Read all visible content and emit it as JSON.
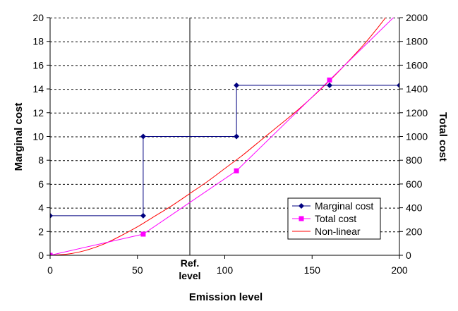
{
  "chart_data": {
    "type": "line",
    "title": "",
    "xlabel": "Emission level",
    "ylabel_left": "Marginal cost",
    "ylabel_right": "Total cost",
    "xlim": [
      0,
      200
    ],
    "ylim_left": [
      0,
      20
    ],
    "ylim_right": [
      0,
      2000
    ],
    "x_ticks": [
      0,
      50,
      100,
      150,
      200
    ],
    "y_left_ticks": [
      0,
      2,
      4,
      6,
      8,
      10,
      12,
      14,
      16,
      18,
      20
    ],
    "y_right_ticks": [
      0,
      200,
      400,
      600,
      800,
      1000,
      1200,
      1400,
      1600,
      1800,
      2000
    ],
    "grid": "horizontal dashed",
    "legend_position": "bottom-right",
    "annotation": {
      "label_lines": [
        "Ref.",
        "level"
      ],
      "x": 80
    },
    "colors": {
      "marginal": "#000080",
      "total": "#ff00ff",
      "nonlinear": "#ff0000",
      "grid": "#000000"
    },
    "series": [
      {
        "name": "Marginal cost",
        "axis": "left",
        "style": "step",
        "x": [
          0,
          53.3,
          53.3,
          106.7,
          106.7,
          160,
          200
        ],
        "y": [
          3.33,
          3.33,
          10,
          10,
          14.3,
          14.3,
          14.3
        ],
        "markers_x": [
          0,
          53.3,
          53.3,
          106.7,
          106.7,
          160,
          200
        ],
        "markers_y": [
          3.33,
          3.33,
          10,
          10,
          14.3,
          14.3,
          14.3
        ]
      },
      {
        "name": "Total cost",
        "axis": "right",
        "style": "line",
        "x": [
          0,
          53.3,
          106.7,
          160,
          200
        ],
        "y": [
          0,
          178,
          711,
          1475,
          2050
        ],
        "markers_x": [
          0,
          53.3,
          106.7,
          160
        ],
        "markers_y": [
          0,
          178,
          711,
          1475
        ]
      },
      {
        "name": "Non-linear",
        "axis": "right",
        "style": "smooth",
        "x": [
          0,
          10,
          20,
          30,
          40,
          50,
          60,
          70,
          80,
          90,
          100,
          110,
          120,
          130,
          140,
          150,
          160,
          170,
          180,
          190,
          195
        ],
        "y": [
          0,
          10,
          40,
          90,
          160,
          240,
          330,
          420,
          520,
          620,
          730,
          840,
          960,
          1080,
          1200,
          1330,
          1470,
          1620,
          1780,
          1960,
          2060
        ]
      }
    ],
    "legend": [
      {
        "label": "Marginal cost",
        "key": "marginal"
      },
      {
        "label": "Total cost",
        "key": "total"
      },
      {
        "label": "Non-linear",
        "key": "nonlinear"
      }
    ]
  }
}
